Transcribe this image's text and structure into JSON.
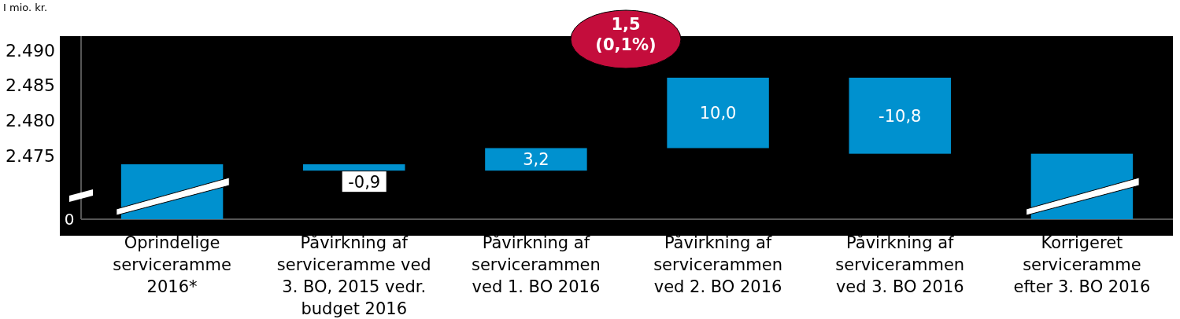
{
  "chart_data": {
    "type": "bar",
    "ylabel": "I mio. kr.",
    "categories": [
      "Oprindelige serviceramme 2016*",
      "Påvirkning af serviceramme ved 3. BO, 2015 vedr. budget 2016",
      "Påvirkning af servicerammen ved 1. BO 2016",
      "Påvirkning af servicerammen ved 2. BO 2016",
      "Påvirkning af servicerammen ved 3. BO 2016",
      "Korrigeret serviceramme efter 3. BO 2016"
    ],
    "values": [
      2473.8,
      -0.9,
      3.2,
      10.0,
      -10.8,
      2475.3
    ],
    "base": [
      null,
      2473.8,
      2472.9,
      2476.1,
      2486.1,
      null
    ],
    "value_labels": [
      null,
      "-0,9",
      "3,2",
      "10,0",
      "-10,8",
      null
    ],
    "color": "#0091cf",
    "ylim": [
      2466,
      2492
    ],
    "yticks": [
      {
        "value": 2475,
        "label": "2.475"
      },
      {
        "value": 2480,
        "label": "2.480"
      },
      {
        "value": 2485,
        "label": "2.485"
      },
      {
        "value": 2490,
        "label": "2.490"
      }
    ],
    "annotations": [
      "1,5 (0,1%)",
      "0"
    ],
    "grid": false
  }
}
